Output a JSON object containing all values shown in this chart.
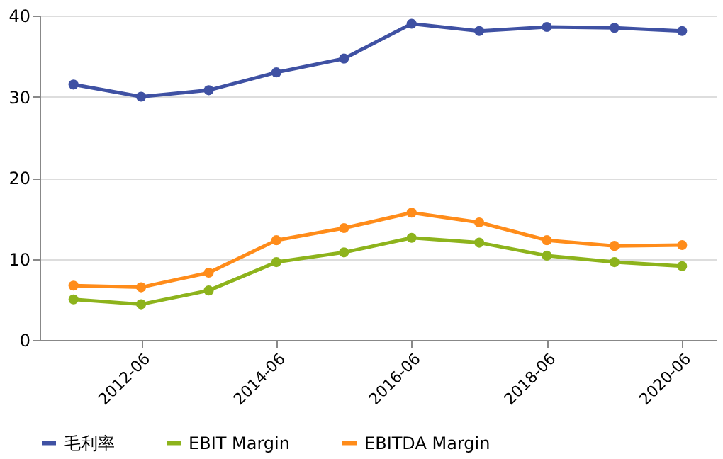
{
  "chart_data": {
    "type": "line",
    "categories": [
      null,
      "2012-06",
      null,
      "2014-06",
      null,
      "2016-06",
      null,
      "2018-06",
      null,
      "2020-06"
    ],
    "series": [
      {
        "name": "毛利率",
        "color": "#3f51a3",
        "values": [
          31.5,
          30.0,
          30.8,
          33.0,
          34.7,
          39.0,
          38.1,
          38.6,
          38.5,
          38.1
        ]
      },
      {
        "name": "EBIT Margin",
        "color": "#8db31c",
        "values": [
          5.0,
          4.4,
          6.1,
          9.6,
          10.8,
          12.6,
          12.0,
          10.4,
          9.6,
          9.1
        ]
      },
      {
        "name": "EBITDA Margin",
        "color": "#ff8c1a",
        "values": [
          6.7,
          6.5,
          8.3,
          12.3,
          13.8,
          15.7,
          14.5,
          12.3,
          11.6,
          11.7
        ]
      }
    ],
    "ylim": [
      0,
      40
    ],
    "yticks": [
      0,
      10,
      20,
      30,
      40
    ],
    "grid": "y",
    "legend": "bottom",
    "marker": "circle",
    "line_style": "solid"
  }
}
